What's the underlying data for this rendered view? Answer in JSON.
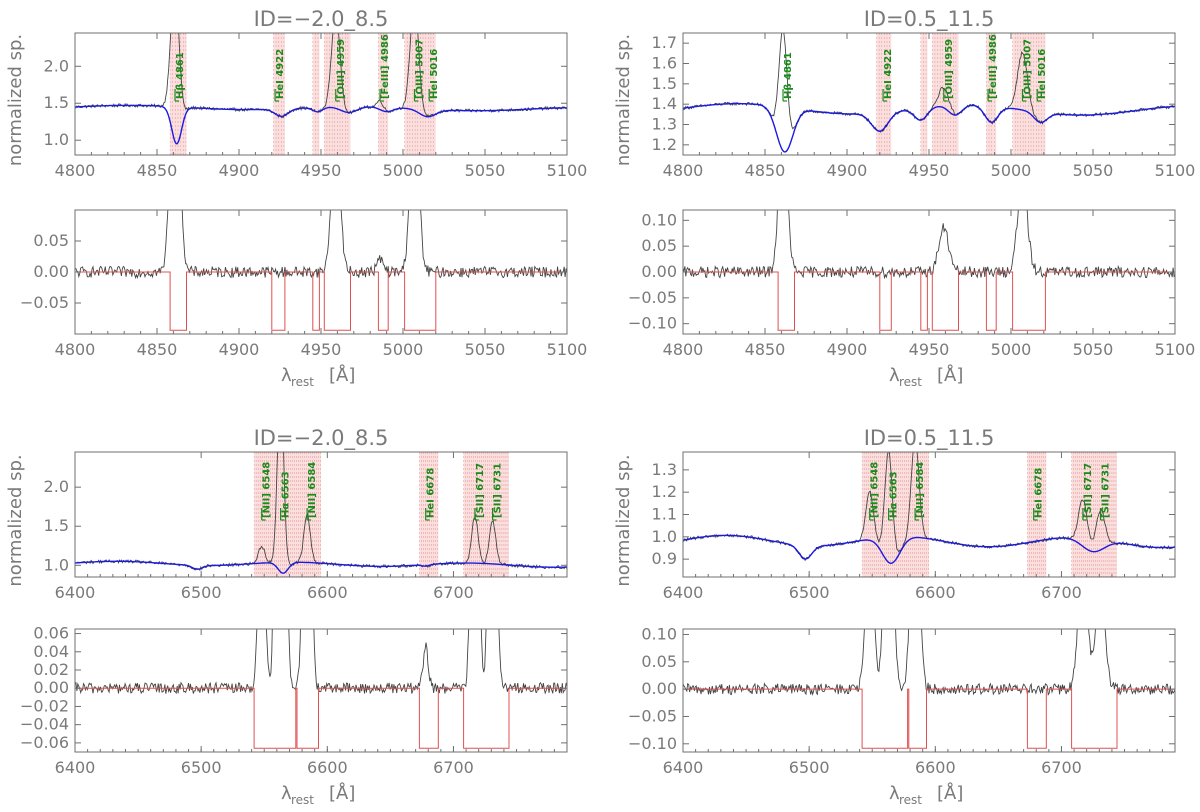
{
  "figure": {
    "ylabel_top": "normalized sp.",
    "xlabel_main": "λ",
    "xlabel_sub": "rest",
    "xlabel_unit": "[Å]"
  },
  "colors": {
    "axis": "#6f6f6f",
    "data": "#444444",
    "fit": "#1a1ae0",
    "mask": "#e05050",
    "maskfill": "#f4b8b8",
    "label": "#1a8a1a"
  },
  "chart_data": [
    {
      "id": "top-left",
      "type": "line",
      "title": "ID=−2.0_8.5",
      "xlim": [
        4800,
        5100
      ],
      "ylim": [
        0.8,
        2.45
      ],
      "xticks": [
        "4800",
        "4850",
        "4900",
        "4950",
        "5000",
        "5050",
        "5100"
      ],
      "yticks": [
        "1.0",
        "1.5",
        "2.0"
      ],
      "ylabel": "normalized sp.",
      "baseline": 1.45,
      "masks": [
        [
          4858,
          4868
        ],
        [
          4921,
          4928
        ],
        [
          4945,
          4949
        ],
        [
          4952,
          4968
        ],
        [
          4985,
          4991
        ],
        [
          5001,
          5020
        ]
      ],
      "fit_dips": [
        [
          4862,
          -0.5,
          3
        ],
        [
          4926,
          -0.1,
          4
        ],
        [
          4948,
          -0.06,
          3
        ],
        [
          4967,
          -0.08,
          5
        ],
        [
          4990,
          -0.06,
          4
        ],
        [
          5015,
          -0.1,
          5
        ]
      ],
      "emission": [
        [
          4861,
          2.2,
          2.5
        ],
        [
          4959,
          1.3,
          2.5
        ],
        [
          5007,
          1.5,
          2.5
        ],
        [
          4986,
          0.12,
          2
        ]
      ],
      "lines": [
        {
          "wave": 4861,
          "label": "Hβ 4861"
        },
        {
          "wave": 4922,
          "label": "HeI 4922"
        },
        {
          "wave": 4959,
          "label": "[OIII] 4959"
        },
        {
          "wave": 4986,
          "label": "[FeIII] 4986"
        },
        {
          "wave": 5007,
          "label": "[OIII] 5007"
        },
        {
          "wave": 5016,
          "label": "HeI 5016"
        }
      ]
    },
    {
      "id": "top-right",
      "type": "line",
      "title": "ID=0.5_11.5",
      "xlim": [
        4800,
        5100
      ],
      "ylim": [
        1.15,
        1.75
      ],
      "xticks": [
        "4800",
        "4850",
        "4900",
        "4950",
        "5000",
        "5050",
        "5100"
      ],
      "yticks": [
        "1.2",
        "1.3",
        "1.4",
        "1.5",
        "1.6",
        "1.7"
      ],
      "ylabel": "normalized sp.",
      "baseline": 1.38,
      "masks": [
        [
          4918,
          4927
        ],
        [
          4945,
          4949
        ],
        [
          4952,
          4968
        ],
        [
          4985,
          4991
        ],
        [
          5001,
          5021
        ]
      ],
      "fit_dips": [
        [
          4862,
          -0.22,
          5
        ],
        [
          4920,
          -0.09,
          5
        ],
        [
          4945,
          -0.06,
          4
        ],
        [
          4966,
          -0.05,
          4
        ],
        [
          4988,
          -0.08,
          4
        ],
        [
          5018,
          -0.05,
          4
        ]
      ],
      "emission": [
        [
          4861,
          0.6,
          2.5
        ],
        [
          4959,
          0.1,
          3
        ],
        [
          5007,
          0.28,
          3
        ]
      ],
      "lines": [
        {
          "wave": 4861,
          "label": "Hβ 4861"
        },
        {
          "wave": 4922,
          "label": "HeI 4922"
        },
        {
          "wave": 4959,
          "label": "[OIII] 4959"
        },
        {
          "wave": 4986,
          "label": "[FeIII] 4986"
        },
        {
          "wave": 5007,
          "label": "[OIII] 5007"
        },
        {
          "wave": 5016,
          "label": "HeI 5016"
        }
      ]
    },
    {
      "id": "mid-left",
      "type": "line",
      "title": "",
      "xlim": [
        4800,
        5100
      ],
      "ylim": [
        -0.1,
        0.1
      ],
      "xticks": [
        "4800",
        "4850",
        "4900",
        "4950",
        "5000",
        "5050",
        "5100"
      ],
      "yticks": [
        "−0.05",
        "0.00",
        "0.05"
      ],
      "ytickvals": [
        -0.05,
        0.0,
        0.05
      ],
      "residual": true,
      "masks": [
        [
          4858,
          4868
        ],
        [
          4920,
          4928
        ],
        [
          4945,
          4949
        ],
        [
          4952,
          4968
        ],
        [
          4985,
          4991
        ],
        [
          5001,
          5020
        ]
      ],
      "emission": [
        [
          4861,
          0.5,
          2.5
        ],
        [
          4959,
          0.25,
          2.5
        ],
        [
          5007,
          0.3,
          2.5
        ],
        [
          4986,
          0.02,
          2
        ]
      ],
      "xlabel": "λ"
    },
    {
      "id": "mid-right",
      "type": "line",
      "title": "",
      "xlim": [
        4800,
        5100
      ],
      "ylim": [
        -0.12,
        0.12
      ],
      "xticks": [
        "4800",
        "4850",
        "4900",
        "4950",
        "5000",
        "5050",
        "5100"
      ],
      "yticks": [
        "−0.10",
        "−0.05",
        "0.00",
        "0.05",
        "0.10"
      ],
      "ytickvals": [
        -0.1,
        -0.05,
        0.0,
        0.05,
        0.1
      ],
      "residual": true,
      "masks": [
        [
          4858,
          4868
        ],
        [
          4920,
          4927
        ],
        [
          4945,
          4949
        ],
        [
          4952,
          4968
        ],
        [
          4985,
          4991
        ],
        [
          5001,
          5021
        ]
      ],
      "emission": [
        [
          4861,
          0.3,
          2.5
        ],
        [
          4959,
          0.085,
          3
        ],
        [
          5007,
          0.17,
          3
        ]
      ],
      "xlabel": "λ"
    },
    {
      "id": "low-left",
      "type": "line",
      "title": "ID=−2.0_8.5",
      "xlim": [
        6400,
        6790
      ],
      "ylim": [
        0.85,
        2.45
      ],
      "xticks": [
        "6400",
        "6500",
        "6600",
        "6700"
      ],
      "yticks": [
        "1.0",
        "1.5",
        "2.0"
      ],
      "ylabel": "normalized sp.",
      "baseline": 1.03,
      "masks": [
        [
          6542,
          6595
        ],
        [
          6673,
          6688
        ],
        [
          6708,
          6744
        ]
      ],
      "fit_dips": [
        [
          6497,
          -0.05,
          4
        ],
        [
          6565,
          -0.14,
          4
        ],
        [
          6678,
          -0.02,
          3
        ]
      ],
      "emission": [
        [
          6548,
          0.22,
          2.5
        ],
        [
          6563,
          2.4,
          2.5
        ],
        [
          6584,
          0.62,
          2.5
        ],
        [
          6717,
          0.6,
          2.5
        ],
        [
          6731,
          0.55,
          2.5
        ]
      ],
      "lines": [
        {
          "wave": 6548,
          "label": "[NII] 6548"
        },
        {
          "wave": 6563,
          "label": "Hα 6563"
        },
        {
          "wave": 6584,
          "label": "[NII] 6584"
        },
        {
          "wave": 6678,
          "label": "HeI 6678"
        },
        {
          "wave": 6717,
          "label": "[SII] 6717"
        },
        {
          "wave": 6731,
          "label": "[SII] 6731"
        }
      ]
    },
    {
      "id": "low-right",
      "type": "line",
      "title": "ID=0.5_11.5",
      "xlim": [
        6400,
        6790
      ],
      "ylim": [
        0.82,
        1.38
      ],
      "xticks": [
        "6400",
        "6500",
        "6600",
        "6700"
      ],
      "yticks": [
        "0.9",
        "1.0",
        "1.1",
        "1.2",
        "1.3"
      ],
      "ylabel": "normalized sp.",
      "baseline": 0.985,
      "masks": [
        [
          6542,
          6595
        ],
        [
          6673,
          6688
        ],
        [
          6708,
          6744
        ]
      ],
      "fit_dips": [
        [
          6497,
          -0.06,
          5
        ],
        [
          6565,
          -0.12,
          7
        ],
        [
          6725,
          -0.06,
          9
        ]
      ],
      "emission": [
        [
          6548,
          0.22,
          3
        ],
        [
          6563,
          0.5,
          3
        ],
        [
          6584,
          0.45,
          3
        ],
        [
          6717,
          0.21,
          3.5
        ],
        [
          6731,
          0.18,
          3.5
        ]
      ],
      "lines": [
        {
          "wave": 6548,
          "label": "[NII] 6548"
        },
        {
          "wave": 6563,
          "label": "Hα 6563"
        },
        {
          "wave": 6584,
          "label": "[NII] 6584"
        },
        {
          "wave": 6678,
          "label": "HeI 6678"
        },
        {
          "wave": 6717,
          "label": "[SII] 6717"
        },
        {
          "wave": 6731,
          "label": "[SII] 6731"
        }
      ]
    },
    {
      "id": "bot-left",
      "type": "line",
      "title": "",
      "xlim": [
        6400,
        6790
      ],
      "ylim": [
        -0.07,
        0.065
      ],
      "xticks": [
        "6400",
        "6500",
        "6600",
        "6700"
      ],
      "yticks": [
        "−0.06",
        "−0.04",
        "−0.02",
        "0.00",
        "0.02",
        "0.04",
        "0.06"
      ],
      "ytickvals": [
        -0.06,
        -0.04,
        -0.02,
        0.0,
        0.02,
        0.04,
        0.06
      ],
      "residual": true,
      "masks": [
        [
          6542,
          6575
        ],
        [
          6576,
          6593
        ],
        [
          6673,
          6688
        ],
        [
          6708,
          6744
        ]
      ],
      "emission": [
        [
          6548,
          0.2,
          2.5
        ],
        [
          6563,
          2.0,
          2.5
        ],
        [
          6584,
          0.6,
          2.5
        ],
        [
          6717,
          0.5,
          2.5
        ],
        [
          6731,
          0.5,
          2.5
        ],
        [
          6678,
          0.045,
          2
        ]
      ],
      "xlabel": "λ"
    },
    {
      "id": "bot-right",
      "type": "line",
      "title": "",
      "xlim": [
        6400,
        6790
      ],
      "ylim": [
        -0.115,
        0.11
      ],
      "xticks": [
        "6400",
        "6500",
        "6600",
        "6700"
      ],
      "yticks": [
        "−0.10",
        "−0.05",
        "0.00",
        "0.05",
        "0.10"
      ],
      "ytickvals": [
        -0.1,
        -0.05,
        0.0,
        0.05,
        0.1
      ],
      "residual": true,
      "masks": [
        [
          6542,
          6578
        ],
        [
          6579,
          6593
        ],
        [
          6673,
          6688
        ],
        [
          6708,
          6744
        ]
      ],
      "emission": [
        [
          6548,
          0.3,
          3
        ],
        [
          6563,
          0.6,
          3
        ],
        [
          6584,
          0.5,
          3
        ],
        [
          6717,
          0.25,
          3.5
        ],
        [
          6731,
          0.2,
          3.5
        ]
      ],
      "xlabel": "λ"
    }
  ]
}
